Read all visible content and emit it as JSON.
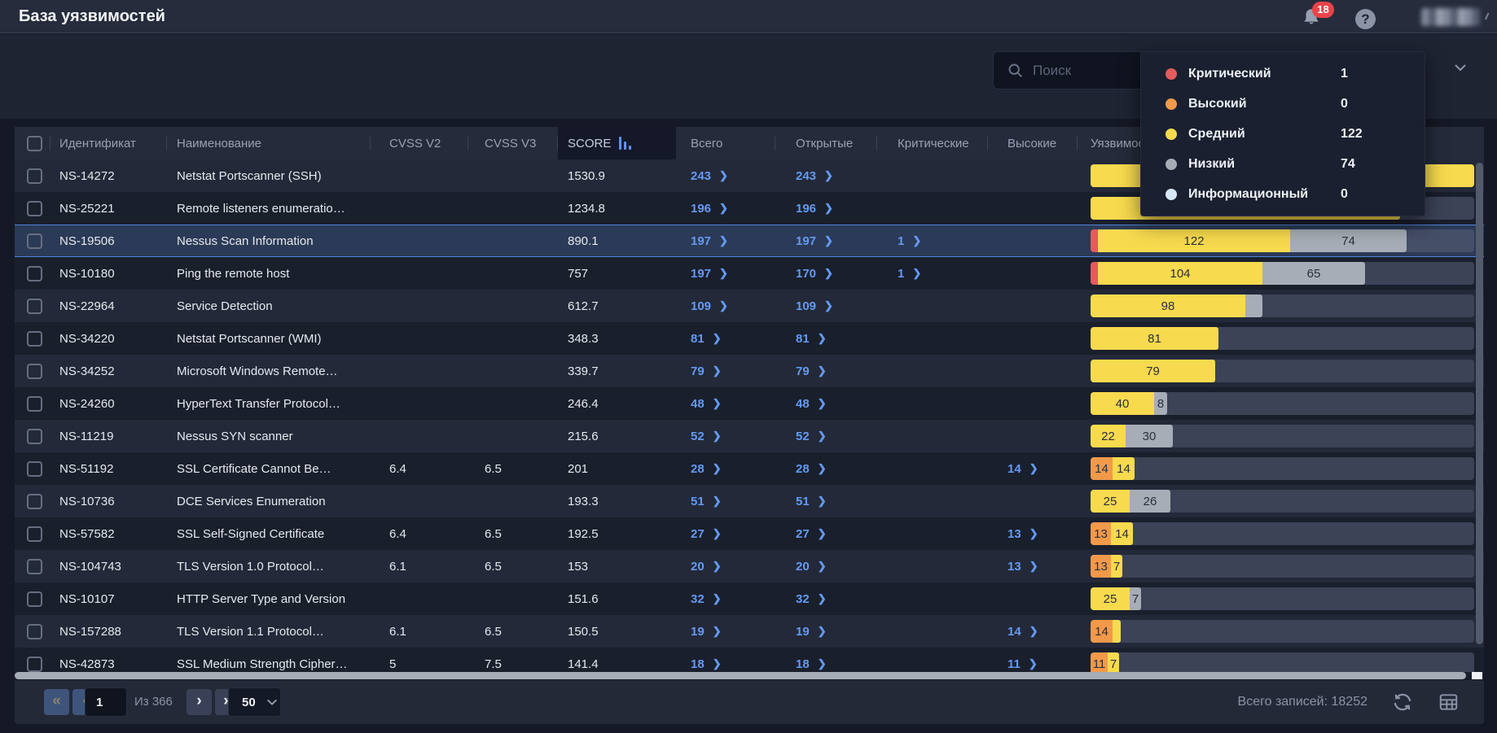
{
  "app": {
    "title": "База уязвимостей"
  },
  "topbar": {
    "notifications_count": "18",
    "help_label": "?"
  },
  "toolbar": {
    "search_placeholder": "Поиск"
  },
  "severity_colors": {
    "critical": "#e45b5b",
    "high": "#f2994a",
    "medium": "#f7da4e",
    "low": "#a7adb6",
    "info": "#d6e7fa"
  },
  "legend": {
    "items": [
      {
        "label": "Критический",
        "value": "1",
        "severity": "critical"
      },
      {
        "label": "Высокий",
        "value": "0",
        "severity": "high"
      },
      {
        "label": "Средний",
        "value": "122",
        "severity": "medium"
      },
      {
        "label": "Низкий",
        "value": "74",
        "severity": "low"
      },
      {
        "label": "Информационный",
        "value": "0",
        "severity": "info"
      }
    ]
  },
  "table": {
    "columns": {
      "id": "Идентификат",
      "name": "Наименование",
      "cvss2": "CVSS V2",
      "cvss3": "CVSS V3",
      "score": "SCORE",
      "total": "Всего",
      "open": "Открытые",
      "critical": "Критические",
      "high": "Высокие",
      "vulns": "Уязвимости"
    },
    "bar_max_total": 243,
    "rows": [
      {
        "id": "NS-14272",
        "name": "Netstat Portscanner (SSH)",
        "cvss2": "",
        "cvss3": "",
        "score": "1530.9",
        "total": "243",
        "open": "243",
        "critical": "",
        "high": "",
        "selected": false,
        "bar": [
          {
            "sev": "medium",
            "value": 243,
            "label": "243"
          }
        ]
      },
      {
        "id": "NS-25221",
        "name": "Remote listeners enumeratio…",
        "cvss2": "",
        "cvss3": "",
        "score": "1234.8",
        "total": "196",
        "open": "196",
        "critical": "",
        "high": "",
        "selected": false,
        "bar": [
          {
            "sev": "medium",
            "value": 196,
            "label": "196"
          }
        ]
      },
      {
        "id": "NS-19506",
        "name": "Nessus Scan Information",
        "cvss2": "",
        "cvss3": "",
        "score": "890.1",
        "total": "197",
        "open": "197",
        "critical": "1",
        "high": "",
        "selected": true,
        "bar": [
          {
            "sev": "critical",
            "value": 1,
            "label": ""
          },
          {
            "sev": "medium",
            "value": 122,
            "label": "122"
          },
          {
            "sev": "low",
            "value": 74,
            "label": "74"
          }
        ]
      },
      {
        "id": "NS-10180",
        "name": "Ping the remote host",
        "cvss2": "",
        "cvss3": "",
        "score": "757",
        "total": "197",
        "open": "170",
        "critical": "1",
        "high": "",
        "selected": false,
        "bar": [
          {
            "sev": "critical",
            "value": 1,
            "label": ""
          },
          {
            "sev": "medium",
            "value": 104,
            "label": "104"
          },
          {
            "sev": "low",
            "value": 65,
            "label": "65"
          }
        ]
      },
      {
        "id": "NS-22964",
        "name": "Service Detection",
        "cvss2": "",
        "cvss3": "",
        "score": "612.7",
        "total": "109",
        "open": "109",
        "critical": "",
        "high": "",
        "selected": false,
        "bar": [
          {
            "sev": "medium",
            "value": 98,
            "label": "98"
          },
          {
            "sev": "low",
            "value": 11,
            "label": ""
          }
        ]
      },
      {
        "id": "NS-34220",
        "name": "Netstat Portscanner (WMI)",
        "cvss2": "",
        "cvss3": "",
        "score": "348.3",
        "total": "81",
        "open": "81",
        "critical": "",
        "high": "",
        "selected": false,
        "bar": [
          {
            "sev": "medium",
            "value": 81,
            "label": "81"
          }
        ]
      },
      {
        "id": "NS-34252",
        "name": "Microsoft Windows Remote…",
        "cvss2": "",
        "cvss3": "",
        "score": "339.7",
        "total": "79",
        "open": "79",
        "critical": "",
        "high": "",
        "selected": false,
        "bar": [
          {
            "sev": "medium",
            "value": 79,
            "label": "79"
          }
        ]
      },
      {
        "id": "NS-24260",
        "name": "HyperText Transfer Protocol…",
        "cvss2": "",
        "cvss3": "",
        "score": "246.4",
        "total": "48",
        "open": "48",
        "critical": "",
        "high": "",
        "selected": false,
        "bar": [
          {
            "sev": "medium",
            "value": 40,
            "label": "40"
          },
          {
            "sev": "low",
            "value": 8,
            "label": "8"
          }
        ]
      },
      {
        "id": "NS-11219",
        "name": "Nessus SYN scanner",
        "cvss2": "",
        "cvss3": "",
        "score": "215.6",
        "total": "52",
        "open": "52",
        "critical": "",
        "high": "",
        "selected": false,
        "bar": [
          {
            "sev": "medium",
            "value": 22,
            "label": "22"
          },
          {
            "sev": "low",
            "value": 30,
            "label": "30"
          }
        ]
      },
      {
        "id": "NS-51192",
        "name": "SSL Certificate Cannot Be…",
        "cvss2": "6.4",
        "cvss3": "6.5",
        "score": "201",
        "total": "28",
        "open": "28",
        "critical": "",
        "high": "14",
        "selected": false,
        "bar": [
          {
            "sev": "high",
            "value": 14,
            "label": "14"
          },
          {
            "sev": "medium",
            "value": 14,
            "label": "14"
          }
        ]
      },
      {
        "id": "NS-10736",
        "name": "DCE Services Enumeration",
        "cvss2": "",
        "cvss3": "",
        "score": "193.3",
        "total": "51",
        "open": "51",
        "critical": "",
        "high": "",
        "selected": false,
        "bar": [
          {
            "sev": "medium",
            "value": 25,
            "label": "25"
          },
          {
            "sev": "low",
            "value": 26,
            "label": "26"
          }
        ]
      },
      {
        "id": "NS-57582",
        "name": "SSL Self-Signed Certificate",
        "cvss2": "6.4",
        "cvss3": "6.5",
        "score": "192.5",
        "total": "27",
        "open": "27",
        "critical": "",
        "high": "13",
        "selected": false,
        "bar": [
          {
            "sev": "high",
            "value": 13,
            "label": "13"
          },
          {
            "sev": "medium",
            "value": 14,
            "label": "14"
          }
        ]
      },
      {
        "id": "NS-104743",
        "name": "TLS Version 1.0 Protocol…",
        "cvss2": "6.1",
        "cvss3": "6.5",
        "score": "153",
        "total": "20",
        "open": "20",
        "critical": "",
        "high": "13",
        "selected": false,
        "bar": [
          {
            "sev": "high",
            "value": 13,
            "label": "13"
          },
          {
            "sev": "medium",
            "value": 7,
            "label": "7"
          }
        ]
      },
      {
        "id": "NS-10107",
        "name": "HTTP Server Type and Version",
        "cvss2": "",
        "cvss3": "",
        "score": "151.6",
        "total": "32",
        "open": "32",
        "critical": "",
        "high": "",
        "selected": false,
        "bar": [
          {
            "sev": "medium",
            "value": 25,
            "label": "25"
          },
          {
            "sev": "low",
            "value": 7,
            "label": "7"
          }
        ]
      },
      {
        "id": "NS-157288",
        "name": "TLS Version 1.1 Protocol…",
        "cvss2": "6.1",
        "cvss3": "6.5",
        "score": "150.5",
        "total": "19",
        "open": "19",
        "critical": "",
        "high": "14",
        "selected": false,
        "bar": [
          {
            "sev": "high",
            "value": 14,
            "label": "14"
          },
          {
            "sev": "medium",
            "value": 5,
            "label": ""
          }
        ]
      },
      {
        "id": "NS-42873",
        "name": "SSL Medium Strength Cipher…",
        "cvss2": "5",
        "cvss3": "7.5",
        "score": "141.4",
        "total": "18",
        "open": "18",
        "critical": "",
        "high": "11",
        "selected": false,
        "bar": [
          {
            "sev": "high",
            "value": 11,
            "label": "11"
          },
          {
            "sev": "medium",
            "value": 7,
            "label": "7"
          }
        ]
      }
    ]
  },
  "footer": {
    "page": "1",
    "of_label": "Из 366",
    "page_size": "50",
    "total_label": "Всего записей: 18252",
    "first_label": "«",
    "prev_label": "‹",
    "next_label": "›",
    "last_label": "»"
  }
}
